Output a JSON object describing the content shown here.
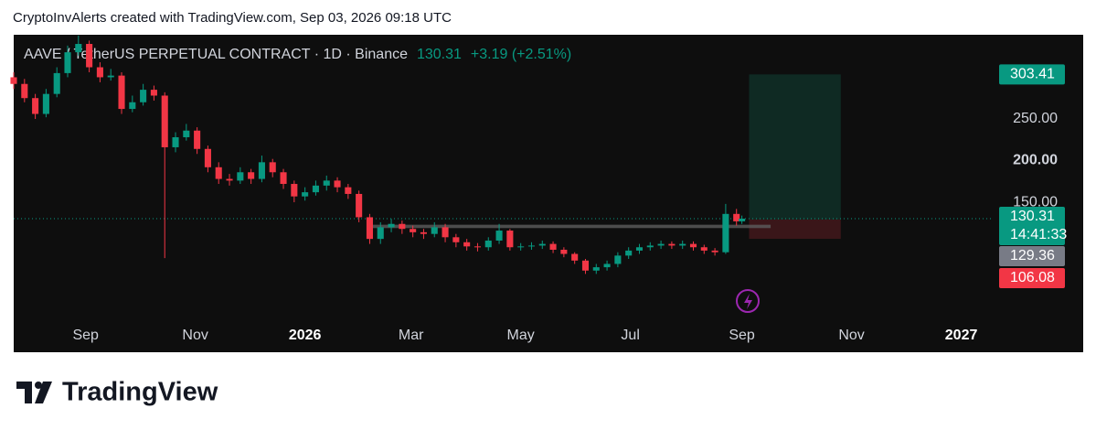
{
  "header": {
    "caption": "CryptoInvAlerts created with TradingView.com, Sep 03, 2026 09:18 UTC",
    "brand": "TradingView"
  },
  "chart_data": {
    "type": "candlestick",
    "title": "AAVE / TetherUS PERPETUAL CONTRACT · 1D · Binance",
    "last_price": 130.31,
    "change": "+3.19 (+2.51%)",
    "countdown": "14:41:33",
    "colors": {
      "up": "#089981",
      "down": "#f23645"
    },
    "x": [
      -40,
      -34,
      -28,
      -22,
      -16,
      -10,
      -4,
      2,
      8,
      14,
      20,
      26,
      32,
      38,
      44,
      50,
      56,
      62,
      68,
      74,
      80,
      86,
      92,
      98,
      104,
      110,
      116,
      122,
      128,
      134,
      140,
      146,
      152,
      158,
      164,
      170,
      176,
      182,
      188,
      194,
      200,
      206,
      212,
      218,
      224,
      230,
      236,
      242,
      248,
      254,
      260,
      266,
      272,
      278,
      284,
      290,
      296,
      302,
      308,
      314,
      320,
      326,
      332,
      338,
      344,
      350,
      356,
      362,
      365
    ],
    "open": [
      300,
      292,
      275,
      256,
      280,
      305,
      330,
      340,
      312,
      300,
      302,
      262,
      270,
      285,
      278,
      216,
      228,
      236,
      214,
      192,
      178,
      176,
      186,
      178,
      198,
      186,
      172,
      157,
      162,
      170,
      176,
      168,
      160,
      132,
      106,
      120,
      124,
      118,
      114,
      112,
      120,
      108,
      102,
      97,
      96,
      104,
      116,
      96,
      97,
      98,
      100,
      93,
      88,
      80,
      68,
      72,
      76,
      86,
      92,
      96,
      98,
      100,
      98,
      100,
      96,
      92,
      90,
      136,
      127.12
    ],
    "high": [
      306,
      298,
      280,
      286,
      312,
      338,
      350,
      344,
      318,
      310,
      306,
      278,
      292,
      290,
      282,
      234,
      244,
      240,
      218,
      198,
      184,
      192,
      190,
      206,
      202,
      190,
      176,
      168,
      176,
      182,
      180,
      172,
      164,
      136,
      126,
      130,
      128,
      122,
      118,
      126,
      124,
      112,
      106,
      101,
      108,
      124,
      118,
      101,
      102,
      104,
      103,
      96,
      90,
      82,
      76,
      80,
      90,
      96,
      100,
      102,
      104,
      103,
      104,
      103,
      99,
      95,
      148,
      142,
      134
    ],
    "low": [
      286,
      270,
      250,
      252,
      276,
      300,
      326,
      306,
      294,
      296,
      256,
      258,
      266,
      272,
      83,
      210,
      224,
      208,
      186,
      172,
      170,
      172,
      172,
      174,
      180,
      166,
      150,
      152,
      158,
      164,
      162,
      154,
      126,
      100,
      100,
      114,
      112,
      108,
      106,
      108,
      102,
      96,
      92,
      91,
      92,
      100,
      92,
      92,
      93,
      94,
      89,
      84,
      76,
      64,
      64,
      68,
      72,
      82,
      88,
      92,
      94,
      94,
      94,
      92,
      88,
      86,
      88,
      122,
      124
    ],
    "close": [
      292,
      275,
      256,
      280,
      305,
      330,
      340,
      312,
      300,
      302,
      262,
      270,
      285,
      278,
      216,
      228,
      236,
      214,
      192,
      178,
      176,
      186,
      178,
      198,
      186,
      172,
      157,
      162,
      170,
      176,
      168,
      160,
      132,
      106,
      120,
      124,
      118,
      114,
      112,
      120,
      108,
      102,
      97,
      96,
      104,
      116,
      96,
      97,
      98,
      100,
      93,
      88,
      80,
      68,
      72,
      76,
      86,
      92,
      96,
      98,
      100,
      98,
      100,
      96,
      92,
      90,
      136,
      127.12,
      130.31
    ],
    "xlim": [
      -40,
      504
    ],
    "xticks": [
      {
        "value": 0,
        "label": "Sep"
      },
      {
        "value": 61,
        "label": "Nov"
      },
      {
        "value": 122,
        "label": "2026"
      },
      {
        "value": 181,
        "label": "Mar"
      },
      {
        "value": 242,
        "label": "May"
      },
      {
        "value": 303,
        "label": "Jul"
      },
      {
        "value": 365,
        "label": "Sep"
      },
      {
        "value": 426,
        "label": "Nov"
      },
      {
        "value": 487,
        "label": "2027"
      }
    ],
    "ylim": [
      -30,
      351
    ],
    "yticks": [
      {
        "value": 150,
        "label": "150.00"
      },
      {
        "value": 200,
        "label": "200.00"
      },
      {
        "value": 250,
        "label": "250.00"
      }
    ],
    "position": {
      "start": 369,
      "end": 420,
      "entry": 129.36,
      "target": 303.41,
      "stop": 106.08
    },
    "zone": {
      "start": 158,
      "end": 381,
      "low": 119,
      "high": 123
    }
  }
}
